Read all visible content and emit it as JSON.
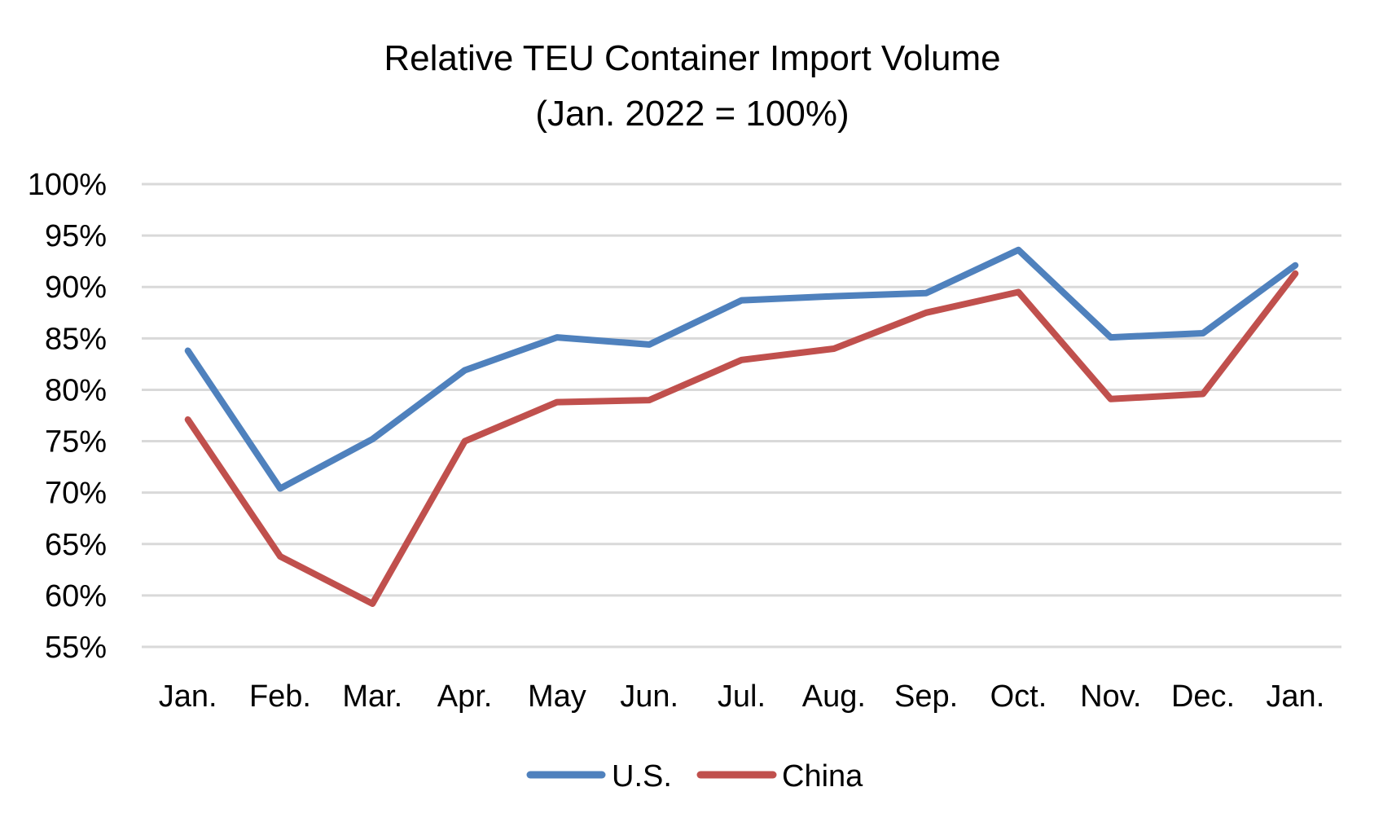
{
  "chart_data": {
    "type": "line",
    "title": "Relative TEU Container Import  Volume",
    "subtitle": "(Jan. 2022 = 100%)",
    "xlabel": "",
    "ylabel": "",
    "categories": [
      "Jan.",
      "Feb.",
      "Mar.",
      "Apr.",
      "May",
      "Jun.",
      "Jul.",
      "Aug.",
      "Sep.",
      "Oct.",
      "Nov.",
      "Dec.",
      "Jan."
    ],
    "ylim": [
      55,
      100
    ],
    "yticks": [
      100,
      95,
      90,
      85,
      80,
      75,
      70,
      65,
      60,
      55
    ],
    "ytick_labels": [
      "100%",
      "95%",
      "90%",
      "85%",
      "80%",
      "75%",
      "70%",
      "65%",
      "60%",
      "55%"
    ],
    "grid": true,
    "legend_position": "bottom",
    "series": [
      {
        "name": "U.S.",
        "color": "#4f81bd",
        "values": [
          83.8,
          70.4,
          75.2,
          81.9,
          85.1,
          84.4,
          88.7,
          89.1,
          89.4,
          93.6,
          85.1,
          85.5,
          92.1
        ]
      },
      {
        "name": "China",
        "color": "#c0504d",
        "values": [
          77.1,
          63.8,
          59.2,
          75.0,
          78.8,
          79.0,
          82.9,
          84.0,
          87.5,
          89.5,
          79.1,
          79.6,
          91.3
        ]
      }
    ]
  }
}
